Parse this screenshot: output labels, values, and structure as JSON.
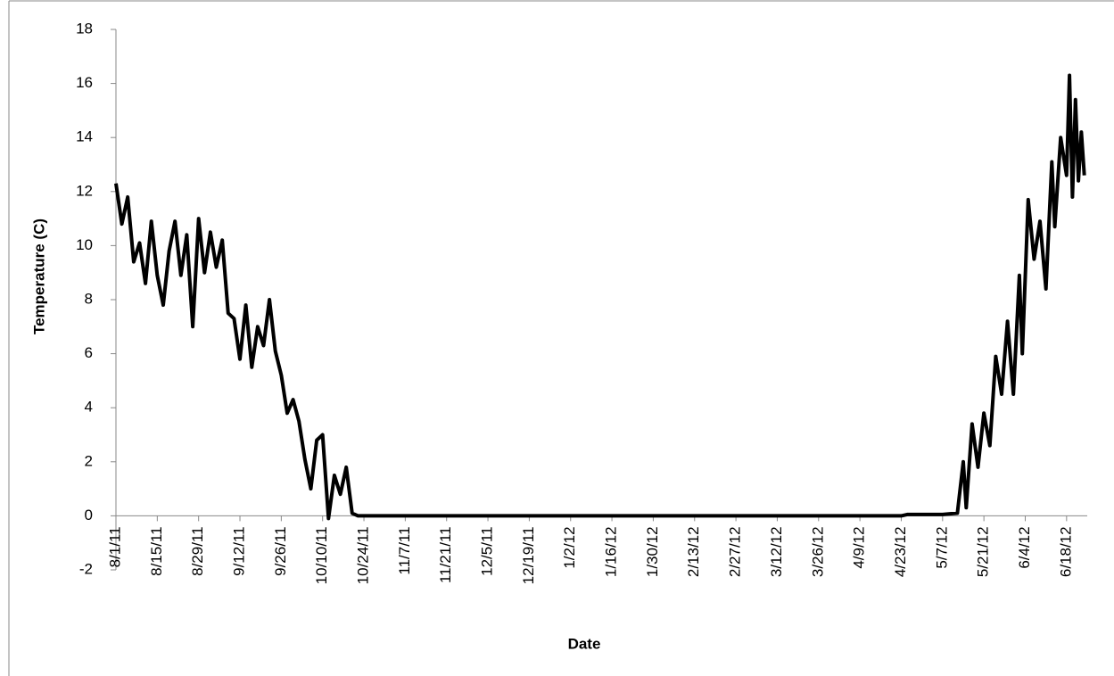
{
  "chart_data": {
    "type": "line",
    "x_label": "Date",
    "y_label": "Temperature (C)",
    "xlim": [
      "8/1/11",
      "6/25/12"
    ],
    "xticks": [
      "8/1/11",
      "8/15/11",
      "8/29/11",
      "9/12/11",
      "9/26/11",
      "10/10/11",
      "10/24/11",
      "11/7/11",
      "11/21/11",
      "12/5/11",
      "12/19/11",
      "1/2/12",
      "1/16/12",
      "1/30/12",
      "2/13/12",
      "2/27/12",
      "3/12/12",
      "3/26/12",
      "4/9/12",
      "4/23/12",
      "5/7/12",
      "5/21/12",
      "6/4/12",
      "6/18/12"
    ],
    "ylim": [
      -2,
      18
    ],
    "yticks": [
      -2,
      0,
      2,
      4,
      6,
      8,
      10,
      12,
      14,
      16,
      18
    ],
    "x": [
      "8/1/11",
      "8/3/11",
      "8/5/11",
      "8/7/11",
      "8/9/11",
      "8/11/11",
      "8/13/11",
      "8/15/11",
      "8/17/11",
      "8/19/11",
      "8/21/11",
      "8/23/11",
      "8/25/11",
      "8/27/11",
      "8/29/11",
      "8/31/11",
      "9/2/11",
      "9/4/11",
      "9/6/11",
      "9/8/11",
      "9/10/11",
      "9/12/11",
      "9/14/11",
      "9/16/11",
      "9/18/11",
      "9/20/11",
      "9/22/11",
      "9/24/11",
      "9/26/11",
      "9/28/11",
      "9/30/11",
      "10/2/11",
      "10/4/11",
      "10/6/11",
      "10/8/11",
      "10/10/11",
      "10/12/11",
      "10/14/11",
      "10/16/11",
      "10/18/11",
      "10/20/11",
      "10/22/11",
      "11/7/11",
      "4/23/12",
      "4/25/12",
      "5/7/12",
      "5/12/12",
      "5/14/12",
      "5/15/12",
      "5/17/12",
      "5/19/12",
      "5/21/12",
      "5/23/12",
      "5/25/12",
      "5/27/12",
      "5/29/12",
      "5/31/12",
      "6/2/12",
      "6/3/12",
      "6/5/12",
      "6/7/12",
      "6/9/12",
      "6/11/12",
      "6/13/12",
      "6/14/12",
      "6/16/12",
      "6/18/12",
      "6/19/12",
      "6/20/12",
      "6/21/12",
      "6/22/12",
      "6/23/12",
      "6/24/12"
    ],
    "series": [
      {
        "name": "Temperature",
        "color": "#000000",
        "values": [
          12.3,
          10.8,
          11.8,
          9.4,
          10.1,
          8.6,
          10.9,
          8.9,
          7.8,
          9.8,
          10.9,
          8.9,
          10.4,
          7.0,
          11.0,
          9.0,
          10.5,
          9.2,
          10.2,
          7.5,
          7.3,
          5.8,
          7.8,
          5.5,
          7.0,
          6.3,
          8.0,
          6.1,
          5.2,
          3.8,
          4.3,
          3.5,
          2.1,
          1.0,
          2.8,
          3.0,
          -0.1,
          1.5,
          0.8,
          1.8,
          0.1,
          0,
          0,
          0,
          0.05,
          0.05,
          0.1,
          2.0,
          0.3,
          3.4,
          1.8,
          3.8,
          2.6,
          5.9,
          4.5,
          7.2,
          4.5,
          8.9,
          6.0,
          11.7,
          9.5,
          10.9,
          8.4,
          13.1,
          10.7,
          14.0,
          12.6,
          16.3,
          11.8,
          15.4,
          12.4,
          14.2,
          12.6
        ]
      }
    ]
  }
}
